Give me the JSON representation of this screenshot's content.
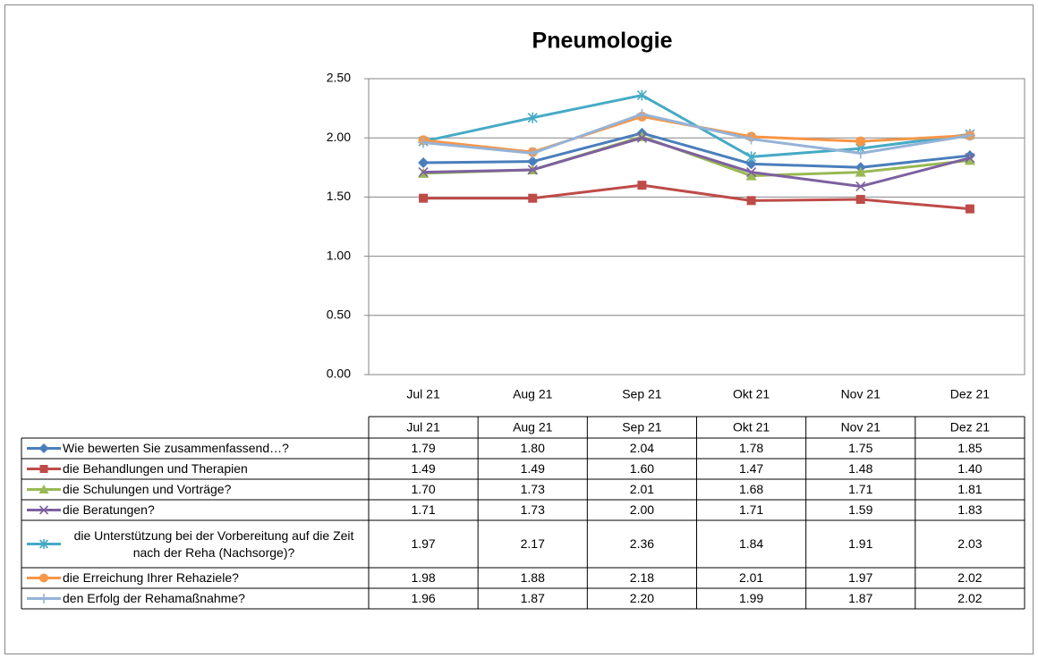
{
  "chart_data": {
    "type": "line",
    "title": "Pneumologie",
    "categories": [
      "Jul 21",
      "Aug 21",
      "Sep 21",
      "Okt 21",
      "Nov 21",
      "Dez 21"
    ],
    "ylim": [
      0,
      2.5
    ],
    "yticks": [
      {
        "value": 0,
        "label": "0.00"
      },
      {
        "value": 0.5,
        "label": "0.50"
      },
      {
        "value": 1,
        "label": "1.00"
      },
      {
        "value": 1.5,
        "label": "1.50"
      },
      {
        "value": 2,
        "label": "2.00"
      },
      {
        "value": 2.5,
        "label": "2.50"
      }
    ],
    "grid": true,
    "series": [
      {
        "name": "Wie bewerten Sie zusammenfassend…?",
        "color": "#4a7ebb",
        "marker": "diamond",
        "values": [
          1.79,
          1.8,
          2.04,
          1.78,
          1.75,
          1.85
        ],
        "value_labels": [
          "1.79",
          "1.80",
          "2.04",
          "1.78",
          "1.75",
          "1.85"
        ]
      },
      {
        "name": "die Behandlungen und Therapien",
        "color": "#be4b48",
        "marker": "square",
        "values": [
          1.49,
          1.49,
          1.6,
          1.47,
          1.48,
          1.4
        ],
        "value_labels": [
          "1.49",
          "1.49",
          "1.60",
          "1.47",
          "1.48",
          "1.40"
        ]
      },
      {
        "name": "die Schulungen und Vorträge?",
        "color": "#98b954",
        "marker": "triangle",
        "values": [
          1.7,
          1.73,
          2.01,
          1.68,
          1.71,
          1.81
        ],
        "value_labels": [
          "1.70",
          "1.73",
          "2.01",
          "1.68",
          "1.71",
          "1.81"
        ]
      },
      {
        "name": "die Beratungen?",
        "color": "#7d60a0",
        "marker": "x",
        "values": [
          1.71,
          1.73,
          2.0,
          1.71,
          1.59,
          1.83
        ],
        "value_labels": [
          "1.71",
          "1.73",
          "2.00",
          "1.71",
          "1.59",
          "1.83"
        ]
      },
      {
        "name": "die Unterstützung bei der Vorbereitung auf die Zeit nach der Reha (Nachsorge)?",
        "color": "#46aac5",
        "marker": "asterisk",
        "values": [
          1.97,
          2.17,
          2.36,
          1.84,
          1.91,
          2.03
        ],
        "value_labels": [
          "1.97",
          "2.17",
          "2.36",
          "1.84",
          "1.91",
          "2.03"
        ]
      },
      {
        "name": "die Erreichung Ihrer Rehaziele?",
        "color": "#f79646",
        "marker": "circle",
        "values": [
          1.98,
          1.88,
          2.18,
          2.01,
          1.97,
          2.02
        ],
        "value_labels": [
          "1.98",
          "1.88",
          "2.18",
          "2.01",
          "1.97",
          "2.02"
        ]
      },
      {
        "name": "den Erfolg der Rehamaßnahme?",
        "color": "#95b3d7",
        "marker": "plus",
        "values": [
          1.96,
          1.87,
          2.2,
          1.99,
          1.87,
          2.02
        ],
        "value_labels": [
          "1.96",
          "1.87",
          "2.20",
          "1.99",
          "1.87",
          "2.02"
        ]
      }
    ]
  }
}
